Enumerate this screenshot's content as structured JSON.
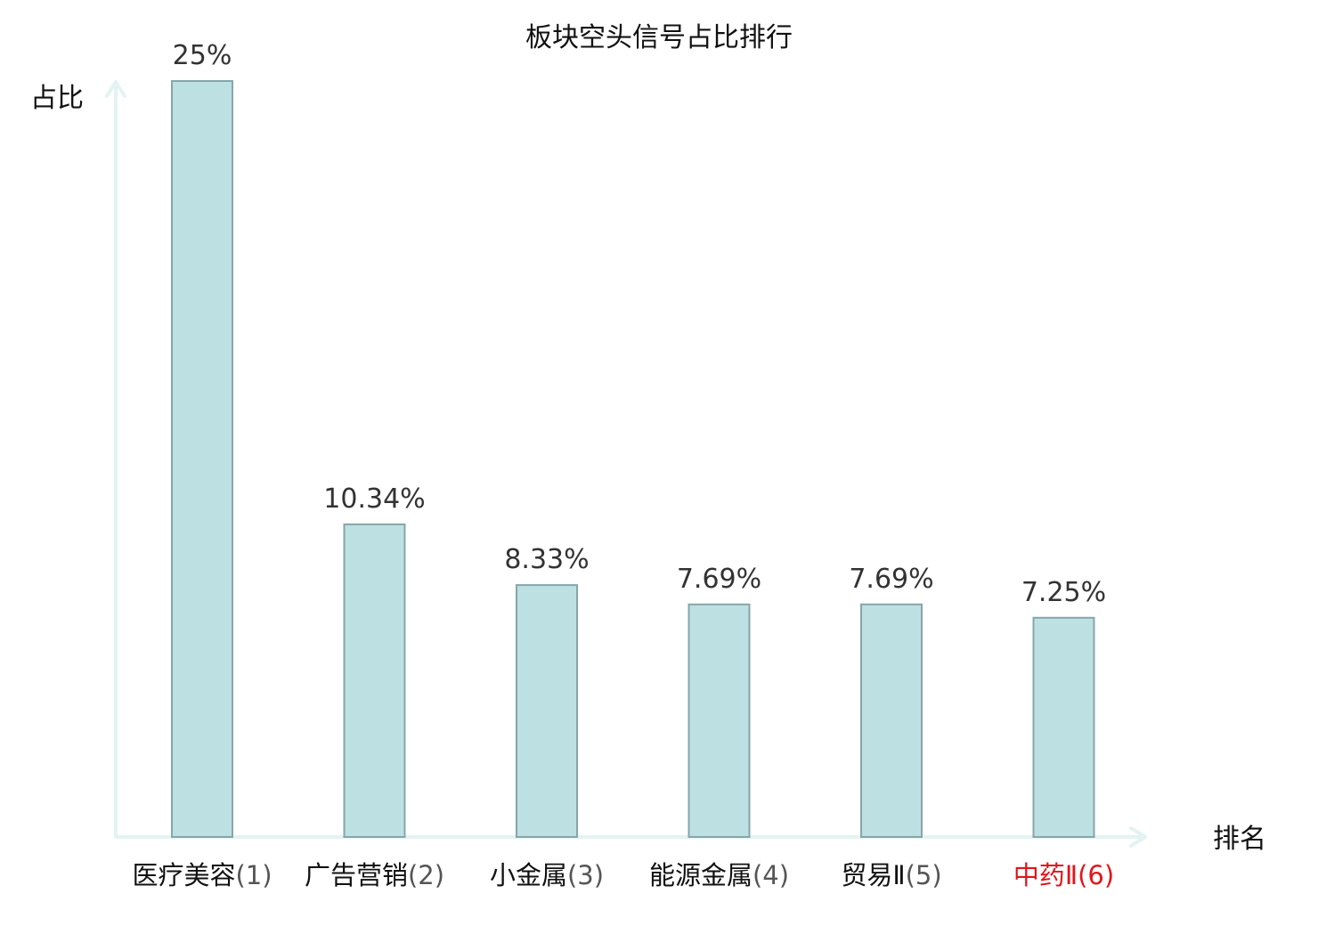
{
  "chart_data": {
    "type": "bar",
    "title": "板块空头信号占比排行",
    "xlabel": "排名",
    "ylabel": "占比",
    "ylim": [
      0,
      25
    ],
    "grid": false,
    "categories": [
      "医疗美容(1)",
      "广告营销(2)",
      "小金属(3)",
      "能源金属(4)",
      "贸易Ⅱ(5)",
      "中药Ⅱ(6)"
    ],
    "category_names": [
      "医疗美容",
      "广告营销",
      "小金属",
      "能源金属",
      "贸易Ⅱ",
      "中药Ⅱ"
    ],
    "category_ranks": [
      "(1)",
      "(2)",
      "(3)",
      "(4)",
      "(5)",
      "(6)"
    ],
    "values": [
      25,
      10.34,
      8.33,
      7.69,
      7.69,
      7.25
    ],
    "value_labels": [
      "25%",
      "10.34%",
      "8.33%",
      "7.69%",
      "7.69%",
      "7.25%"
    ],
    "highlighted_category_index": 5
  },
  "colors": {
    "bar_fill": "#bde0e2",
    "bar_stroke": "#86a6a9",
    "axis": "#e3f3f1",
    "text": "#111111",
    "value_text": "#333333",
    "highlight_text": "#e0161b"
  }
}
